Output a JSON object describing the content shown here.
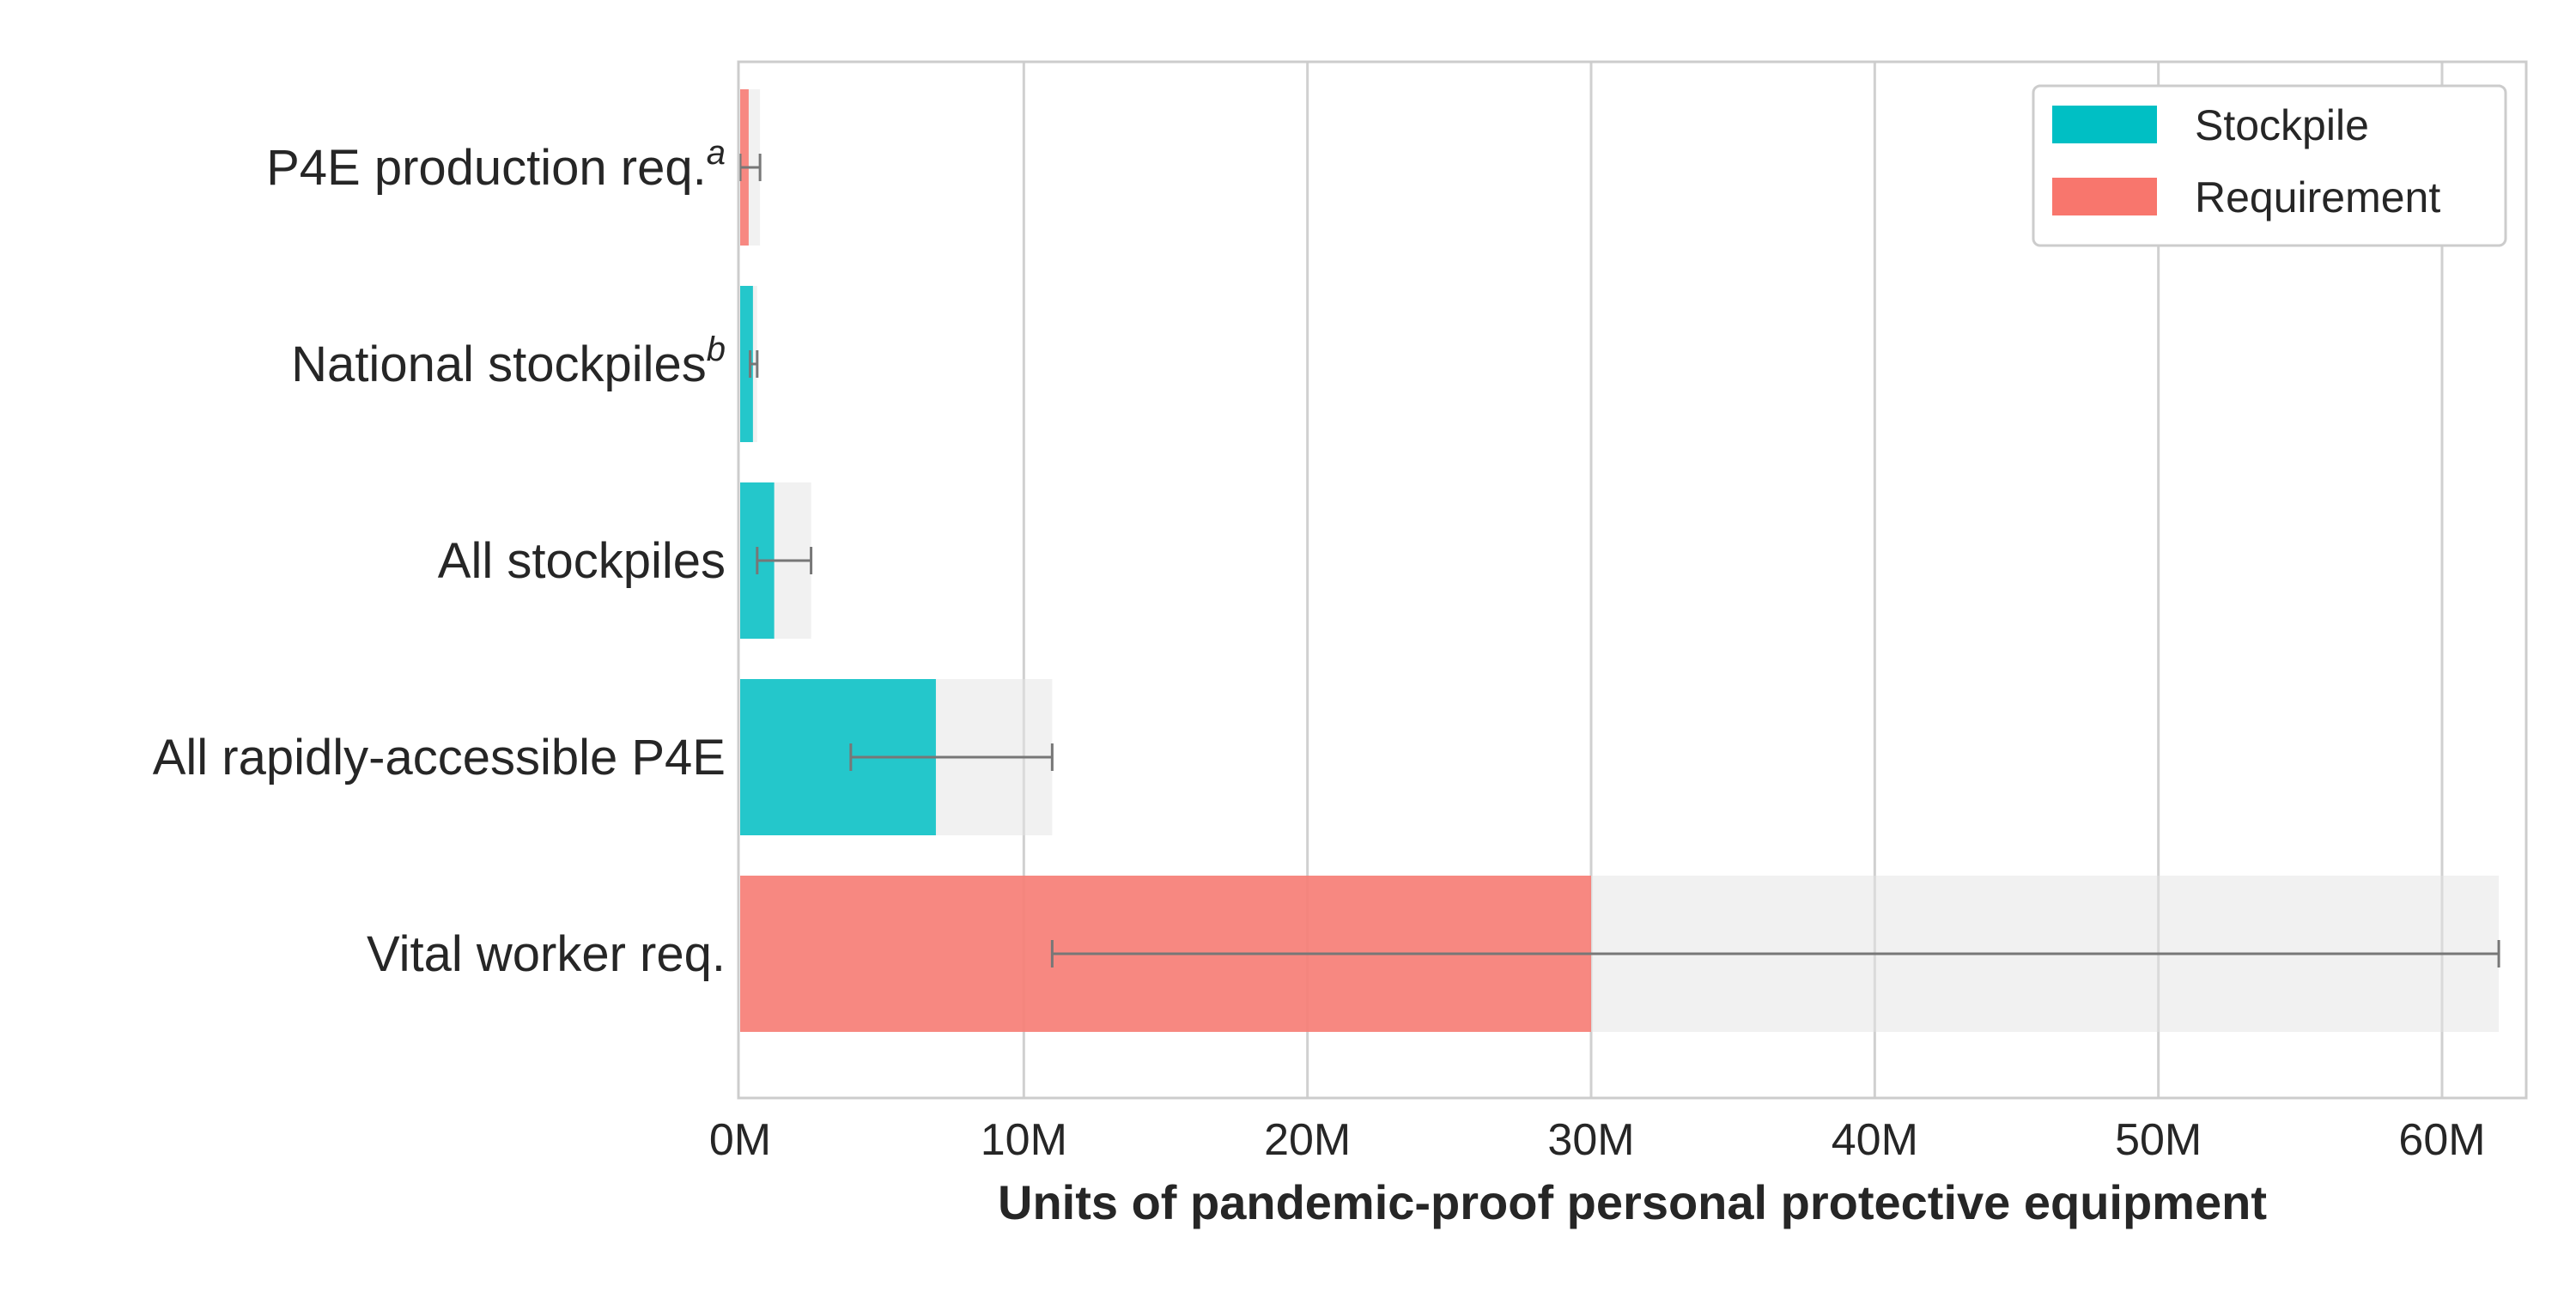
{
  "chart_data": {
    "type": "bar",
    "orientation": "horizontal",
    "xlabel": "Units of pandemic-proof personal protective equipment",
    "ylabel": "",
    "xlim": [
      0,
      65000000
    ],
    "x_ticks": [
      0,
      10000000,
      20000000,
      30000000,
      40000000,
      50000000,
      60000000
    ],
    "x_tick_labels": [
      "0M",
      "10M",
      "20M",
      "30M",
      "40M",
      "50M",
      "60M"
    ],
    "grid": "vertical",
    "legend_position": "top-right",
    "legend": [
      {
        "name": "Stockpile",
        "color": "#00BFC4"
      },
      {
        "name": "Requirement",
        "color": "#F8766D"
      }
    ],
    "categories": [
      {
        "label": "P4E production req.",
        "sup": "a",
        "kind": "Requirement",
        "value": 300000,
        "err_low": 0,
        "err_high": 700000
      },
      {
        "label": "National stockpiles",
        "sup": "b",
        "kind": "Stockpile",
        "value": 450000,
        "err_low": 350000,
        "err_high": 600000
      },
      {
        "label": "All stockpiles",
        "sup": "",
        "kind": "Stockpile",
        "value": 1200000,
        "err_low": 600000,
        "err_high": 2500000
      },
      {
        "label": "All rapidly-accessible P4E",
        "sup": "",
        "kind": "Stockpile",
        "value": 6900000,
        "err_low": 3900000,
        "err_high": 11000000
      },
      {
        "label": "Vital worker req.",
        "sup": "",
        "kind": "Requirement",
        "value": 30000000,
        "err_low": 11000000,
        "err_high": 62000000
      }
    ]
  }
}
